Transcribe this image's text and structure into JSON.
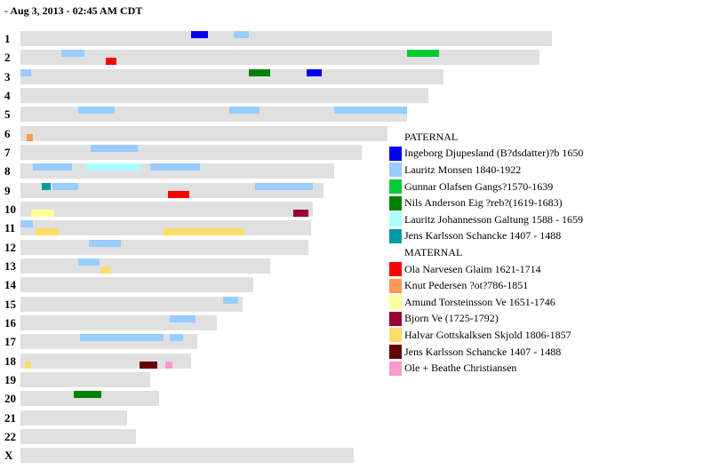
{
  "title": "- Aug 3, 2013 - 02:45 AM CDT",
  "units": "Mb",
  "chromosomes": [
    {
      "name": "1",
      "length": 249,
      "segments": [
        {
          "who": "p0",
          "side": "paternal",
          "start": 80,
          "end": 88
        },
        {
          "who": "p1",
          "side": "paternal",
          "start": 100,
          "end": 107
        }
      ]
    },
    {
      "name": "2",
      "length": 243,
      "segments": [
        {
          "who": "p1",
          "side": "paternal",
          "start": 19,
          "end": 30
        },
        {
          "who": "p2",
          "side": "paternal",
          "start": 181,
          "end": 196
        },
        {
          "who": "m0",
          "side": "maternal",
          "start": 40,
          "end": 45
        }
      ]
    },
    {
      "name": "3",
      "length": 198,
      "segments": [
        {
          "who": "p1",
          "side": "paternal",
          "start": 0,
          "end": 5
        },
        {
          "who": "p3",
          "side": "paternal",
          "start": 107,
          "end": 117
        },
        {
          "who": "p0",
          "side": "paternal",
          "start": 134,
          "end": 141
        }
      ]
    },
    {
      "name": "4",
      "length": 191,
      "segments": []
    },
    {
      "name": "5",
      "length": 181,
      "segments": [
        {
          "who": "p1",
          "side": "paternal",
          "start": 27,
          "end": 44
        },
        {
          "who": "p1",
          "side": "paternal",
          "start": 98,
          "end": 112
        },
        {
          "who": "p1",
          "side": "paternal",
          "start": 147,
          "end": 181
        }
      ]
    },
    {
      "name": "6",
      "length": 172,
      "segments": [
        {
          "who": "m1",
          "side": "maternal",
          "start": 3,
          "end": 6
        }
      ]
    },
    {
      "name": "7",
      "length": 160,
      "segments": [
        {
          "who": "p1",
          "side": "paternal",
          "start": 33,
          "end": 55
        }
      ]
    },
    {
      "name": "8",
      "length": 147,
      "segments": [
        {
          "who": "p1",
          "side": "paternal",
          "start": 6,
          "end": 24
        },
        {
          "who": "p4",
          "side": "paternal",
          "start": 31,
          "end": 56
        },
        {
          "who": "p1",
          "side": "paternal",
          "start": 61,
          "end": 84
        }
      ]
    },
    {
      "name": "9",
      "length": 142,
      "segments": [
        {
          "who": "p5",
          "side": "paternal",
          "start": 10,
          "end": 14
        },
        {
          "who": "p1",
          "side": "paternal",
          "start": 15,
          "end": 27
        },
        {
          "who": "p1",
          "side": "paternal",
          "start": 110,
          "end": 137
        },
        {
          "who": "m0",
          "side": "maternal",
          "start": 69,
          "end": 79
        }
      ]
    },
    {
      "name": "10",
      "length": 137,
      "segments": [
        {
          "who": "m2",
          "side": "maternal",
          "start": 5,
          "end": 16
        },
        {
          "who": "m3",
          "side": "maternal",
          "start": 128,
          "end": 135
        }
      ]
    },
    {
      "name": "11",
      "length": 136,
      "segments": [
        {
          "who": "p1",
          "side": "paternal",
          "start": 0,
          "end": 6
        },
        {
          "who": "m4",
          "side": "maternal",
          "start": 7,
          "end": 18
        },
        {
          "who": "m4",
          "side": "maternal",
          "start": 67,
          "end": 105
        }
      ]
    },
    {
      "name": "12",
      "length": 135,
      "segments": [
        {
          "who": "p1",
          "side": "paternal",
          "start": 32,
          "end": 47
        }
      ]
    },
    {
      "name": "13",
      "length": 117,
      "segments": [
        {
          "who": "p1",
          "side": "paternal",
          "start": 27,
          "end": 37
        },
        {
          "who": "m4",
          "side": "maternal",
          "start": 38,
          "end": 42
        }
      ]
    },
    {
      "name": "14",
      "length": 109,
      "segments": []
    },
    {
      "name": "15",
      "length": 104,
      "segments": [
        {
          "who": "p1",
          "side": "paternal",
          "start": 95,
          "end": 102
        }
      ]
    },
    {
      "name": "16",
      "length": 92,
      "segments": [
        {
          "who": "p1",
          "side": "paternal",
          "start": 70,
          "end": 82
        }
      ]
    },
    {
      "name": "17",
      "length": 83,
      "segments": [
        {
          "who": "p1",
          "side": "paternal",
          "start": 28,
          "end": 67
        },
        {
          "who": "p1",
          "side": "paternal",
          "start": 70,
          "end": 76
        }
      ]
    },
    {
      "name": "18",
      "length": 80,
      "segments": [
        {
          "who": "m4",
          "side": "maternal",
          "start": 2,
          "end": 5
        },
        {
          "who": "m5",
          "side": "maternal",
          "start": 56,
          "end": 64
        },
        {
          "who": "m6",
          "side": "maternal",
          "start": 68,
          "end": 71
        }
      ]
    },
    {
      "name": "19",
      "length": 61,
      "segments": []
    },
    {
      "name": "20",
      "length": 65,
      "segments": [
        {
          "who": "p3",
          "side": "paternal",
          "start": 25,
          "end": 38
        }
      ]
    },
    {
      "name": "21",
      "length": 50,
      "segments": []
    },
    {
      "name": "22",
      "length": 54,
      "segments": []
    },
    {
      "name": "X",
      "length": 156,
      "segments": []
    }
  ],
  "legend": {
    "paternal_label": "PATERNAL",
    "maternal_label": "MATERNAL",
    "paternal": [
      {
        "id": "p0",
        "name": "Ingeborg Djupesland (B?dsdatter)?b 1650",
        "color": "#0000ee"
      },
      {
        "id": "p1",
        "name": "Lauritz Monsen 1840-1922",
        "color": "#99ccff"
      },
      {
        "id": "p2",
        "name": "Gunnar Olafsen Gangs?1570-1639",
        "color": "#00cc33"
      },
      {
        "id": "p3",
        "name": "Nils Anderson Eig ?reb?(1619-1683)",
        "color": "#008000"
      },
      {
        "id": "p4",
        "name": "Lauritz Johannesson Galtung 1588 - 1659",
        "color": "#aaffff"
      },
      {
        "id": "p5",
        "name": "Jens Karlsson Schancke 1407 - 1488",
        "color": "#0099aa"
      }
    ],
    "maternal": [
      {
        "id": "m0",
        "name": "Ola Narvesen Glaim 1621-1714",
        "color": "#ff0000"
      },
      {
        "id": "m1",
        "name": "Knut Pedersen ?ot?786-1851",
        "color": "#ff9955"
      },
      {
        "id": "m2",
        "name": "Amund Torsteinsson Ve 1651-1746",
        "color": "#ffff99"
      },
      {
        "id": "m3",
        "name": "Bjorn Ve (1725-1792)",
        "color": "#990033"
      },
      {
        "id": "m4",
        "name": "Halvar Gottskalksen Skjold 1806-1857",
        "color": "#ffdd66"
      },
      {
        "id": "m5",
        "name": "Jens Karlsson Schancke 1407 - 1488",
        "color": "#660000"
      },
      {
        "id": "m6",
        "name": "Ole + Beathe Christiansen",
        "color": "#ff99cc"
      }
    ]
  }
}
